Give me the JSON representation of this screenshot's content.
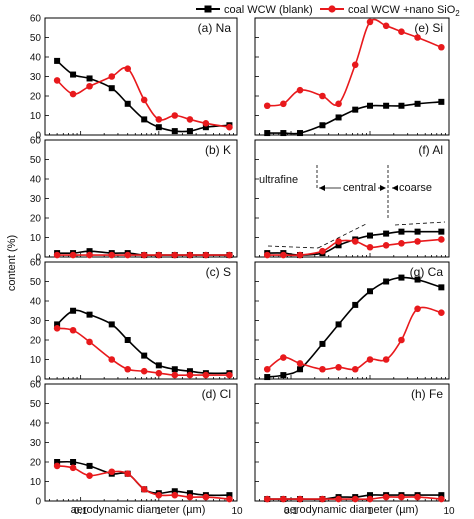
{
  "legend": {
    "items": [
      {
        "label": "coal WCW (blank)",
        "color": "#000000",
        "marker": "square"
      },
      {
        "label": "coal WCW +nano SiO",
        "subscript": "2",
        "color": "#e8191c",
        "marker": "circle"
      }
    ]
  },
  "axis": {
    "y_label": "content (%)",
    "x_label": "aerodynamic diameter (µm)",
    "x_ticks": [
      "0.1",
      "1",
      "10"
    ],
    "y_ticks": [
      "0",
      "10",
      "20",
      "30",
      "40",
      "50",
      "60"
    ]
  },
  "regions": {
    "ultrafine": "ultrafine",
    "central": "central",
    "coarse": "coarse"
  },
  "colors": {
    "blank": "#000000",
    "nano": "#e8191c"
  },
  "chart_data": [
    {
      "type": "line",
      "title": "(a) Na",
      "xscale": "log",
      "ylim": [
        0,
        60
      ],
      "series": [
        {
          "name": "coal WCW (blank)",
          "x": [
            0.05,
            0.08,
            0.13,
            0.25,
            0.4,
            0.65,
            1.0,
            1.6,
            2.5,
            4.0,
            8.0
          ],
          "y": [
            38,
            31,
            29,
            24,
            16,
            8,
            4,
            2,
            2,
            4,
            5
          ]
        },
        {
          "name": "coal WCW +nano SiO2",
          "x": [
            0.05,
            0.08,
            0.13,
            0.25,
            0.4,
            0.65,
            1.0,
            1.6,
            2.5,
            4.0,
            8.0
          ],
          "y": [
            28,
            21,
            25,
            30,
            34,
            18,
            8,
            10,
            8,
            6,
            4
          ]
        }
      ]
    },
    {
      "type": "line",
      "title": "(e) Si",
      "xscale": "log",
      "ylim": [
        0,
        60
      ],
      "series": [
        {
          "name": "coal WCW (blank)",
          "x": [
            0.05,
            0.08,
            0.13,
            0.25,
            0.4,
            0.65,
            1.0,
            1.6,
            2.5,
            4.0,
            8.0
          ],
          "y": [
            1,
            1,
            1,
            5,
            9,
            13,
            15,
            15,
            15,
            16,
            17
          ]
        },
        {
          "name": "coal WCW +nano SiO2",
          "x": [
            0.05,
            0.08,
            0.13,
            0.25,
            0.4,
            0.65,
            1.0,
            1.6,
            2.5,
            4.0,
            8.0
          ],
          "y": [
            15,
            16,
            23,
            20,
            16,
            36,
            58,
            56,
            53,
            50,
            45
          ]
        }
      ]
    },
    {
      "type": "line",
      "title": "(b) K",
      "xscale": "log",
      "ylim": [
        0,
        60
      ],
      "series": [
        {
          "name": "coal WCW (blank)",
          "x": [
            0.05,
            0.08,
            0.13,
            0.25,
            0.4,
            0.65,
            1.0,
            1.6,
            2.5,
            4.0,
            8.0
          ],
          "y": [
            2,
            2,
            3,
            2,
            2,
            1,
            1,
            1,
            1,
            1,
            1
          ]
        },
        {
          "name": "coal WCW +nano SiO2",
          "x": [
            0.05,
            0.08,
            0.13,
            0.25,
            0.4,
            0.65,
            1.0,
            1.6,
            2.5,
            4.0,
            8.0
          ],
          "y": [
            1,
            1,
            1,
            1,
            1,
            1,
            1,
            1,
            1,
            1,
            1
          ]
        }
      ]
    },
    {
      "type": "line",
      "title": "(f) Al",
      "xscale": "log",
      "ylim": [
        0,
        60
      ],
      "series": [
        {
          "name": "coal WCW (blank)",
          "x": [
            0.05,
            0.08,
            0.13,
            0.25,
            0.4,
            0.65,
            1.0,
            1.6,
            2.5,
            4.0,
            8.0
          ],
          "y": [
            2,
            2,
            1,
            2,
            6,
            9,
            11,
            12,
            13,
            13,
            13
          ]
        },
        {
          "name": "coal WCW +nano SiO2",
          "x": [
            0.05,
            0.08,
            0.13,
            0.25,
            0.4,
            0.65,
            1.0,
            1.6,
            2.5,
            4.0,
            8.0
          ],
          "y": [
            1,
            1,
            1,
            3,
            8,
            8,
            5,
            6,
            7,
            8,
            9
          ]
        }
      ]
    },
    {
      "type": "line",
      "title": "(c) S",
      "xscale": "log",
      "ylim": [
        0,
        60
      ],
      "series": [
        {
          "name": "coal WCW (blank)",
          "x": [
            0.05,
            0.08,
            0.13,
            0.25,
            0.4,
            0.65,
            1.0,
            1.6,
            2.5,
            4.0,
            8.0
          ],
          "y": [
            28,
            35,
            33,
            28,
            20,
            12,
            7,
            5,
            4,
            3,
            3
          ]
        },
        {
          "name": "coal WCW +nano SiO2",
          "x": [
            0.05,
            0.08,
            0.13,
            0.25,
            0.4,
            0.65,
            1.0,
            1.6,
            2.5,
            4.0,
            8.0
          ],
          "y": [
            26,
            25,
            19,
            10,
            5,
            4,
            3,
            2,
            2,
            2,
            2
          ]
        }
      ]
    },
    {
      "type": "line",
      "title": "(g) Ca",
      "xscale": "log",
      "ylim": [
        0,
        60
      ],
      "series": [
        {
          "name": "coal WCW (blank)",
          "x": [
            0.05,
            0.08,
            0.13,
            0.25,
            0.4,
            0.65,
            1.0,
            1.6,
            2.5,
            4.0,
            8.0
          ],
          "y": [
            1,
            2,
            5,
            18,
            28,
            38,
            45,
            50,
            52,
            51,
            47
          ]
        },
        {
          "name": "coal WCW +nano SiO2",
          "x": [
            0.05,
            0.08,
            0.13,
            0.25,
            0.4,
            0.65,
            1.0,
            1.6,
            2.5,
            4.0,
            8.0
          ],
          "y": [
            5,
            11,
            8,
            5,
            6,
            5,
            10,
            10,
            20,
            36,
            34
          ]
        }
      ]
    },
    {
      "type": "line",
      "title": "(d) Cl",
      "xscale": "log",
      "ylim": [
        0,
        60
      ],
      "series": [
        {
          "name": "coal WCW (blank)",
          "x": [
            0.05,
            0.08,
            0.13,
            0.25,
            0.4,
            0.65,
            1.0,
            1.6,
            2.5,
            4.0,
            8.0
          ],
          "y": [
            20,
            20,
            18,
            14,
            14,
            6,
            4,
            5,
            4,
            3,
            3
          ]
        },
        {
          "name": "coal WCW +nano SiO2",
          "x": [
            0.05,
            0.08,
            0.13,
            0.25,
            0.4,
            0.65,
            1.0,
            1.6,
            2.5,
            4.0,
            8.0
          ],
          "y": [
            18,
            17,
            13,
            15,
            14,
            6,
            3,
            3,
            2,
            2,
            1
          ]
        }
      ]
    },
    {
      "type": "line",
      "title": "(h) Fe",
      "xscale": "log",
      "ylim": [
        0,
        60
      ],
      "series": [
        {
          "name": "coal WCW (blank)",
          "x": [
            0.05,
            0.08,
            0.13,
            0.25,
            0.4,
            0.65,
            1.0,
            1.6,
            2.5,
            4.0,
            8.0
          ],
          "y": [
            1,
            1,
            1,
            1,
            2,
            2,
            3,
            3,
            3,
            3,
            3
          ]
        },
        {
          "name": "coal WCW +nano SiO2",
          "x": [
            0.05,
            0.08,
            0.13,
            0.25,
            0.4,
            0.65,
            1.0,
            1.6,
            2.5,
            4.0,
            8.0
          ],
          "y": [
            1,
            1,
            1,
            1,
            1,
            1,
            1,
            2,
            2,
            2,
            1
          ]
        }
      ]
    }
  ]
}
